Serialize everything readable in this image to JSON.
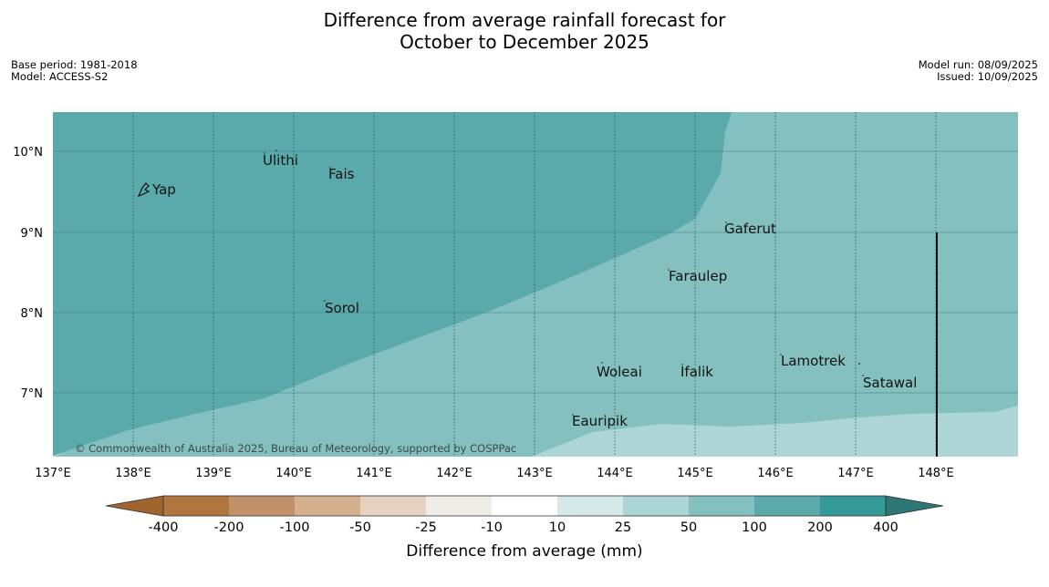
{
  "title": {
    "line1": "Difference from average rainfall forecast for",
    "line2": "October to December 2025"
  },
  "meta_left": {
    "base_period": "Base period: 1981-2018",
    "model": "Model: ACCESS-S2"
  },
  "meta_right": {
    "model_run": "Model run: 08/09/2025",
    "issued": "Issued: 10/09/2025"
  },
  "map": {
    "lat_labels": [
      "10°N",
      "9°N",
      "8°N",
      "7°N"
    ],
    "lon_labels": [
      "137°E",
      "138°E",
      "139°E",
      "140°E",
      "141°E",
      "142°E",
      "143°E",
      "144°E",
      "145°E",
      "146°E",
      "147°E",
      "148°E"
    ],
    "places": [
      "Yap",
      "Ulithi",
      "Fais",
      "Gaferut",
      "Faraulep",
      "Sorol",
      "Lamotrek",
      "Woleai",
      "Ifalik",
      "Satawal",
      "Eauripik"
    ],
    "copyright": "© Commonwealth of Australia 2025, Bureau of Meteorology, supported by COSPPac",
    "region_colors": {
      "dark": "#5aaaab",
      "mid": "#84c0bf",
      "light": "#aed6d6"
    }
  },
  "legend": {
    "ticks": [
      "-400",
      "-200",
      "-100",
      "-50",
      "-25",
      "-10",
      "10",
      "25",
      "50",
      "100",
      "200",
      "400"
    ],
    "colors": [
      "#a0652d",
      "#b07640",
      "#c1926a",
      "#d5b08f",
      "#e4d1c1",
      "#f0ede9",
      "#ffffff",
      "#d6e9e9",
      "#acd5d5",
      "#84c0bf",
      "#5aaaab",
      "#339a98",
      "#2f7676"
    ],
    "label": "Difference from average (mm)"
  }
}
